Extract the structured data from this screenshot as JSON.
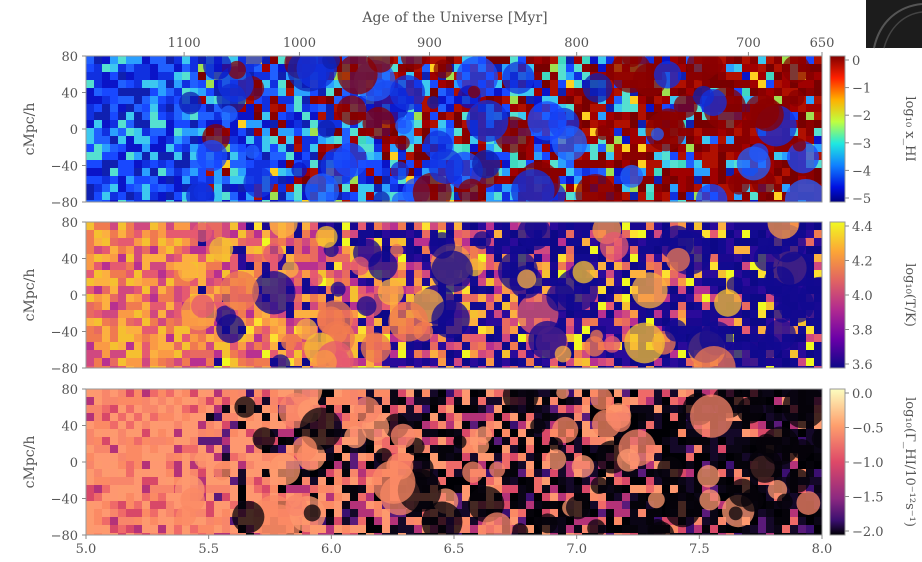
{
  "chart_data": {
    "type": "heatmap",
    "top_axis": {
      "label": "Age of the Universe [Myr]",
      "ticks": [
        {
          "label": "1100",
          "z": 5.4
        },
        {
          "label": "1000",
          "z": 5.87
        },
        {
          "label": "900",
          "z": 6.4
        },
        {
          "label": "800",
          "z": 7.0
        },
        {
          "label": "700",
          "z": 7.7
        },
        {
          "label": "650",
          "z": 8.0
        }
      ]
    },
    "x_axis": {
      "range": [
        5.0,
        8.0
      ],
      "ticks": [
        "5.0",
        "5.5",
        "6.0",
        "6.5",
        "7.0",
        "7.5",
        "8.0"
      ]
    },
    "panels": [
      {
        "ylabel": "cMpc/h",
        "yrange": [
          -80,
          80
        ],
        "yticks": [
          "80",
          "40",
          "0",
          "−40",
          "−80"
        ],
        "colorbar": {
          "label": "log₁₀ x_HI",
          "range": [
            -5,
            0
          ],
          "ticks": [
            "0",
            "−1",
            "−2",
            "−3",
            "−4",
            "−5"
          ],
          "colormap": "jet"
        }
      },
      {
        "ylabel": "cMpc/h",
        "yrange": [
          -80,
          80
        ],
        "yticks": [
          "80",
          "40",
          "0",
          "−40",
          "−80"
        ],
        "colorbar": {
          "label": "log₁₀(T/K)",
          "range": [
            3.5,
            4.5
          ],
          "ticks": [
            "4.4",
            "4.2",
            "4.0",
            "3.8",
            "3.6"
          ],
          "colormap": "plasma"
        }
      },
      {
        "ylabel": "cMpc/h",
        "yrange": [
          -80,
          80
        ],
        "yticks": [
          "80",
          "40",
          "0",
          "−40",
          "−80"
        ],
        "colorbar": {
          "label": "log₁₀(Γ_HI/10⁻¹²s⁻¹)",
          "range": [
            -2.2,
            0.2
          ],
          "ticks": [
            "0.0",
            "−0.5",
            "−1.0",
            "−1.5",
            "−2.0"
          ],
          "colormap": "magma"
        }
      }
    ]
  }
}
